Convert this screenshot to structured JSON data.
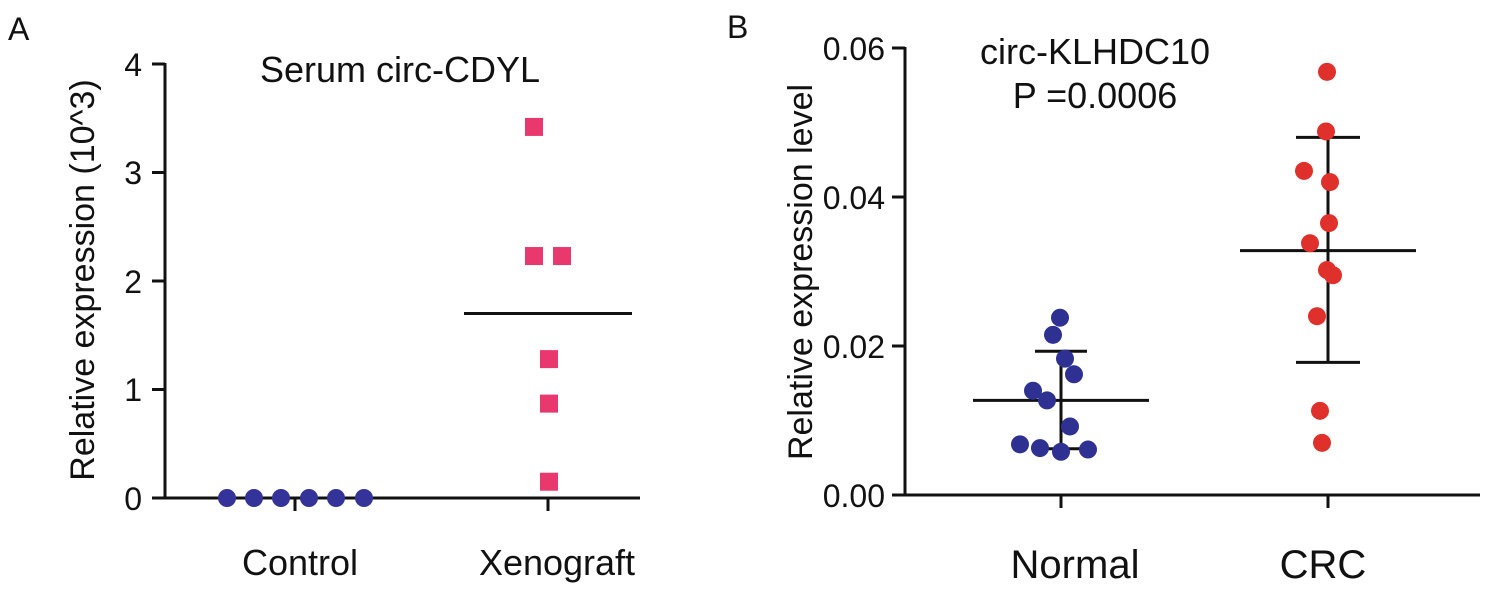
{
  "panels": {
    "a": {
      "letter": "A",
      "title": "Serum circ-CDYL",
      "ylabel": "Relative expression (10^3)",
      "yticks": [
        "0",
        "1",
        "2",
        "3",
        "4"
      ],
      "xticks": [
        "Control",
        "Xenograft"
      ]
    },
    "b": {
      "letter": "B",
      "title": "circ-KLHDC10",
      "pvalue": "P =0.0006",
      "ylabel": "Relative expression level",
      "yticks": [
        "0.00",
        "0.02",
        "0.04",
        "0.06"
      ],
      "xticks": [
        "Normal",
        "CRC"
      ]
    }
  },
  "chart_data": [
    {
      "type": "scatter",
      "title": "Serum circ-CDYL",
      "xlabel": "",
      "ylabel": "Relative expression (10^3)",
      "ylim": [
        0,
        4
      ],
      "yticks": [
        0,
        1,
        2,
        3,
        4
      ],
      "categories": [
        "Control",
        "Xenograft"
      ],
      "series": [
        {
          "name": "Control",
          "marker": "circle",
          "color": "#333399",
          "values": [
            0,
            0,
            0,
            0,
            0,
            0
          ],
          "mean": 0
        },
        {
          "name": "Xenograft",
          "marker": "square",
          "color": "#e8386d",
          "values": [
            3.42,
            2.23,
            2.23,
            1.28,
            0.87,
            0.15
          ],
          "mean": 1.7
        }
      ]
    },
    {
      "type": "scatter",
      "title": "circ-KLHDC10",
      "annotation": "P =0.0006",
      "xlabel": "",
      "ylabel": "Relative expression level",
      "ylim": [
        0,
        0.06
      ],
      "yticks": [
        0,
        0.02,
        0.04,
        0.06
      ],
      "categories": [
        "Normal",
        "CRC"
      ],
      "series": [
        {
          "name": "Normal",
          "marker": "circle",
          "color": "#2e3192",
          "values": [
            0.0238,
            0.0215,
            0.0183,
            0.0162,
            0.014,
            0.0127,
            0.0092,
            0.0068,
            0.0063,
            0.0061,
            0.0058
          ],
          "mean": 0.0127,
          "sd_upper": 0.0193,
          "sd_lower": 0.0062
        },
        {
          "name": "CRC",
          "marker": "circle",
          "color": "#e0302b",
          "values": [
            0.0568,
            0.0488,
            0.0435,
            0.042,
            0.0365,
            0.0338,
            0.0302,
            0.0295,
            0.024,
            0.0113,
            0.007
          ],
          "mean": 0.0328,
          "sd_upper": 0.048,
          "sd_lower": 0.0178
        }
      ]
    }
  ]
}
